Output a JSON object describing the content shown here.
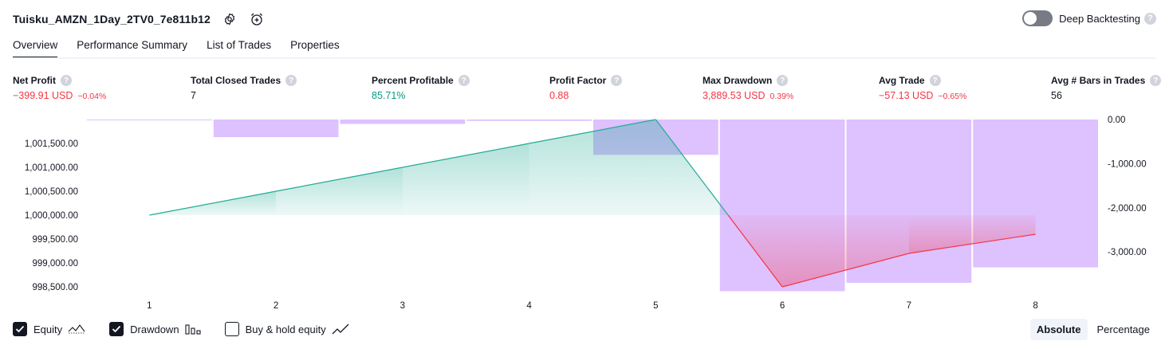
{
  "header": {
    "title": "Tuisku_AMZN_1Day_2TV0_7e811b12",
    "settings_icon": "gear-icon",
    "alert_icon": "alarm-add-icon"
  },
  "deep_backtesting": {
    "label": "Deep Backtesting",
    "enabled": false,
    "help": "?"
  },
  "tabs": [
    {
      "label": "Overview",
      "active": true
    },
    {
      "label": "Performance Summary",
      "active": false
    },
    {
      "label": "List of Trades",
      "active": false
    },
    {
      "label": "Properties",
      "active": false
    }
  ],
  "metrics": {
    "net_profit": {
      "label": "Net Profit",
      "value": "−399.91 USD",
      "pct": "−0.04%"
    },
    "total_closed_trades": {
      "label": "Total Closed Trades",
      "value": "7"
    },
    "percent_profitable": {
      "label": "Percent Profitable",
      "value": "85.71%"
    },
    "profit_factor": {
      "label": "Profit Factor",
      "value": "0.88"
    },
    "max_drawdown": {
      "label": "Max Drawdown",
      "value": "3,889.53 USD",
      "pct": "0.39%"
    },
    "avg_trade": {
      "label": "Avg Trade",
      "value": "−57.13 USD",
      "pct": "−0.65%"
    },
    "avg_bars": {
      "label": "Avg # Bars in Trades",
      "value": "56"
    }
  },
  "chart_data": {
    "type": "line",
    "x": [
      1,
      2,
      3,
      4,
      5,
      6,
      7,
      8
    ],
    "series": [
      {
        "name": "Equity",
        "axis": "left",
        "values": [
          1000000,
          1000500,
          1001000,
          1001500,
          1002000,
          998500,
          999200,
          999600
        ]
      },
      {
        "name": "Drawdown",
        "axis": "right",
        "type": "bar",
        "values": [
          0,
          -400,
          -100,
          -30,
          -800,
          -3889.53,
          -3700,
          -3350
        ]
      }
    ],
    "left_ticks": [
      "1,001,500.00",
      "1,001,000.00",
      "1,000,500.00",
      "1,000,000.00",
      "999,500.00",
      "999,000.00",
      "998,500.00"
    ],
    "right_ticks": [
      "0.00",
      "-1,000.00",
      "-2,000.00",
      "-3,000.00"
    ],
    "x_ticks": [
      "1",
      "2",
      "3",
      "4",
      "5",
      "6",
      "7",
      "8"
    ],
    "ylim_left": [
      998400,
      1002000
    ],
    "ylim_right": [
      -3900,
      0
    ],
    "colors": {
      "equity_up": "#22ab94",
      "equity_down": "#f23645",
      "drawdown": "#cda0ff"
    }
  },
  "legend": {
    "equity": {
      "label": "Equity",
      "checked": true,
      "icon": "equity-line-icon"
    },
    "drawdown": {
      "label": "Drawdown",
      "checked": true,
      "icon": "drawdown-bars-icon"
    },
    "buy_hold": {
      "label": "Buy & hold equity",
      "checked": false,
      "icon": "trend-line-icon"
    }
  },
  "modes": {
    "absolute": "Absolute",
    "percentage": "Percentage",
    "active": "absolute"
  }
}
